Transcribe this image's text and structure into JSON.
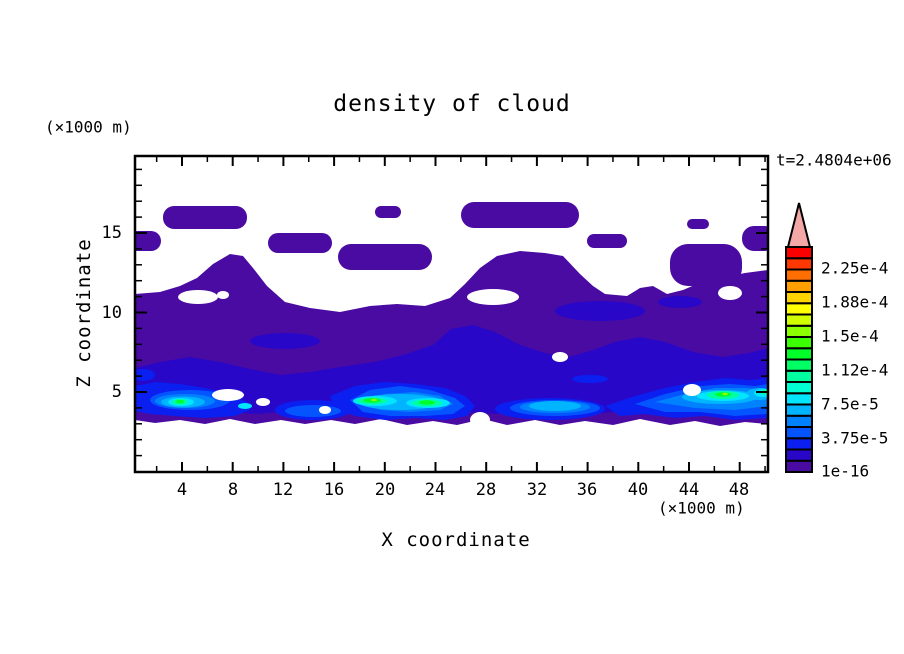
{
  "title": "density of cloud",
  "time_label": "t=2.4804e+06",
  "x_axis": {
    "label": "X coordinate",
    "units_label": "(×1000 m)",
    "tick_labels": [
      "4",
      "8",
      "12",
      "16",
      "20",
      "24",
      "28",
      "32",
      "36",
      "40",
      "44",
      "48"
    ]
  },
  "y_axis": {
    "label": "Z coordinate",
    "units_label": "(×1000 m)",
    "tick_labels": [
      "5",
      "10",
      "15"
    ]
  },
  "colorbar": {
    "labels": [
      "2.25e-4",
      "1.88e-4",
      "1.5e-4",
      "1.12e-4",
      "7.5e-5",
      "3.75e-5",
      "1e-16"
    ],
    "arrow_color": "#F4A7A7",
    "colors": [
      "#4A0BA2",
      "#2807C8",
      "#0A1FF0",
      "#0455FF",
      "#0082FF",
      "#00B4FF",
      "#00E6FF",
      "#00FFD2",
      "#00FFA0",
      "#00FF64",
      "#00FF28",
      "#3CFF00",
      "#8CFF00",
      "#D2FF00",
      "#FFFF00",
      "#FFD200",
      "#FFA000",
      "#FF6E00",
      "#FF3700",
      "#FA0000"
    ]
  },
  "palette": {
    "white": "#ffffff",
    "frame": "#000000"
  },
  "chart_data": {
    "type": "heatmap",
    "title": "density of cloud",
    "xlabel": "X coordinate (×1000 m)",
    "ylabel": "Z coordinate (×1000 m)",
    "xlim": [
      0,
      50.5
    ],
    "ylim": [
      0,
      19.8
    ],
    "x_major_ticks": [
      4,
      8,
      12,
      16,
      20,
      24,
      28,
      32,
      36,
      40,
      44,
      48
    ],
    "x_minor_step": 2,
    "y_major_ticks": [
      5,
      10,
      15
    ],
    "y_minor_step": 1,
    "time_annotation": "t=2.4804e+06",
    "colorbar_tick_labels": [
      "1e-16",
      "3.75e-5",
      "7.5e-5",
      "1.12e-4",
      "1.5e-4",
      "1.88e-4",
      "2.25e-4"
    ],
    "contour_interval": 1.25e-05,
    "n_color_boxes": 20,
    "legend_position": "right",
    "grid": false,
    "description": "Filled contour field of cloud density. Lowest level (1e-16 to 1.25e-5, indigo) fills a broad layer from z≈3 to z≈13 km with scattered detached patches up to z≈16.5 km. Density increases toward cloud base: navy and blue layers near z≈4-6 km, with cyan/spring-green/green cores (up to ≈1.7e-4) at z≈4-5 km centered near x≈5, 18-24, 44-50 (×1000 m). Region below z≈3 km is clear (white)."
  }
}
